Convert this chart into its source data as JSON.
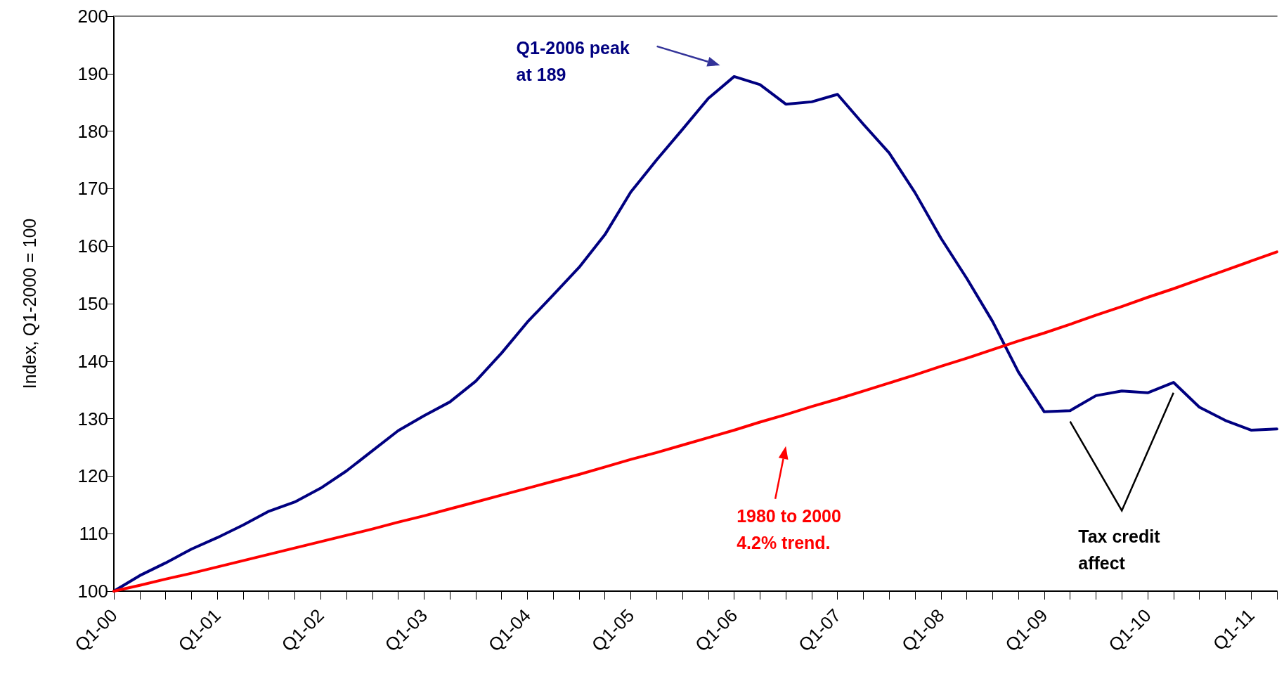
{
  "chart_data": {
    "type": "line",
    "ylabel": "Index, Q1-2000 = 100",
    "categories": [
      "Q1-00",
      null,
      null,
      null,
      "Q1-01",
      null,
      null,
      null,
      "Q1-02",
      null,
      null,
      null,
      "Q1-03",
      null,
      null,
      null,
      "Q1-04",
      null,
      null,
      null,
      "Q1-05",
      null,
      null,
      null,
      "Q1-06",
      null,
      null,
      null,
      "Q1-07",
      null,
      null,
      null,
      "Q1-08",
      null,
      null,
      null,
      "Q1-09",
      null,
      null,
      null,
      "Q1-10",
      null,
      null,
      null,
      "Q1-11",
      null
    ],
    "series": [
      {
        "color": "#000080",
        "values": [
          100,
          102.7,
          104.9,
          107.3,
          109.3,
          111.5,
          113.9,
          115.5,
          117.9,
          120.9,
          124.4,
          127.9,
          130.5,
          132.9,
          136.5,
          141.4,
          146.8,
          151.5,
          156.3,
          162.0,
          169.4,
          175.0,
          180.3,
          185.7,
          189.5,
          188.1,
          184.7,
          185.1,
          186.4,
          181.2,
          176.2,
          169.3,
          161.4,
          154.4,
          146.9,
          138.1,
          131.2,
          131.4,
          134.0,
          134.8,
          134.5,
          136.3,
          132.0,
          129.7,
          128.0,
          128.2
        ]
      },
      {
        "color": "#ff0000",
        "values": [
          100,
          101.0,
          102.1,
          103.1,
          104.2,
          105.3,
          106.4,
          107.5,
          108.6,
          109.7,
          110.8,
          112.0,
          113.1,
          114.3,
          115.5,
          116.7,
          117.9,
          119.1,
          120.3,
          121.6,
          122.9,
          124.1,
          125.4,
          126.7,
          128.0,
          129.4,
          130.7,
          132.1,
          133.4,
          134.8,
          136.2,
          137.6,
          139.1,
          140.5,
          142.0,
          143.5,
          144.9,
          146.4,
          148.0,
          149.5,
          151.1,
          152.6,
          154.2,
          155.8,
          157.4,
          159.0
        ]
      }
    ],
    "ylim": [
      100,
      200
    ],
    "yticks": [
      100,
      110,
      120,
      130,
      140,
      150,
      160,
      170,
      180,
      190,
      200
    ],
    "grid": false,
    "marker": "none",
    "line_style": "solid",
    "annotations": [
      "Q1-2006 peak\nat 189",
      "1980 to 2000\n4.2% trend.",
      "Tax credit\naffect"
    ]
  }
}
